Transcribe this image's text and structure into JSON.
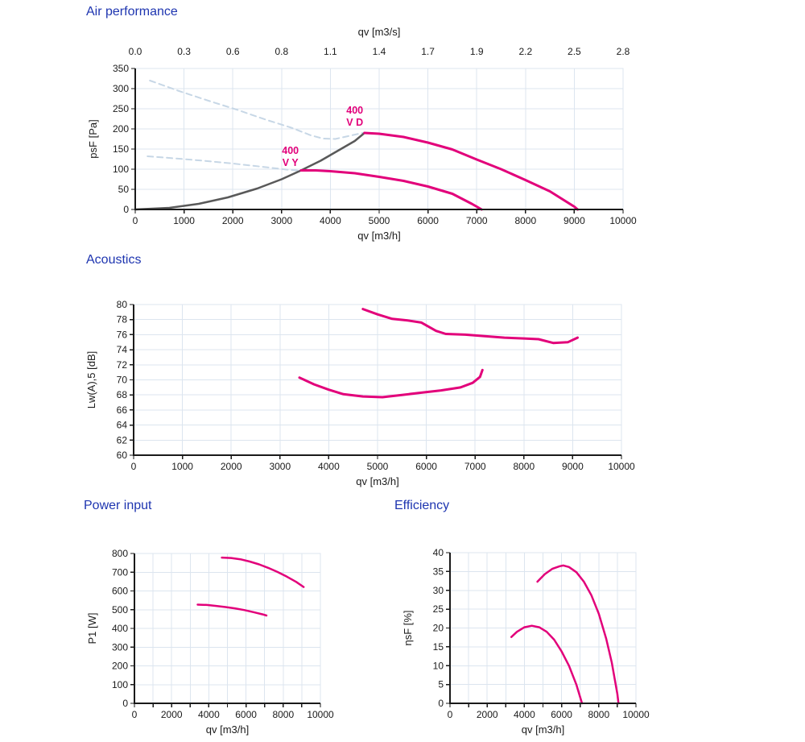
{
  "colors": {
    "title": "#1e35b0",
    "pink": "#e2007a",
    "gray": "#595959",
    "dash_blue": "#c7d7e6",
    "grid": "#dce5ef",
    "axis": "#1a1a1a",
    "text": "#1a1a1a"
  },
  "chart_data": [
    {
      "id": "air-performance",
      "type": "line",
      "title": "Air performance",
      "x_axis": {
        "label": "qv [m3/h]",
        "min": 0,
        "max": 10000,
        "ticks": [
          0,
          1000,
          2000,
          3000,
          4000,
          5000,
          6000,
          7000,
          8000,
          9000,
          10000
        ],
        "tick_labels": [
          "0",
          "1000",
          "2000",
          "3000",
          "4000",
          "5000",
          "6000",
          "7000",
          "8000",
          "9000",
          "10000"
        ]
      },
      "x_axis_top": {
        "label": "qv [m3/s]",
        "tick_labels": [
          "0.0",
          "0.3",
          "0.6",
          "0.8",
          "1.1",
          "1.4",
          "1.7",
          "1.9",
          "2.2",
          "2.5",
          "2.8"
        ]
      },
      "y_axis": {
        "label": "psF [Pa]",
        "min": 0,
        "max": 350,
        "ticks": [
          0,
          50,
          100,
          150,
          200,
          250,
          300,
          350
        ],
        "tick_labels": [
          "0",
          "50",
          "100",
          "150",
          "200",
          "250",
          "300",
          "350"
        ]
      },
      "series": [
        {
          "name": "vd-max-limit",
          "color_key": "dash_blue",
          "style": "dashed",
          "width": 2,
          "points": [
            [
              300,
              320
            ],
            [
              900,
              294
            ],
            [
              1500,
              270
            ],
            [
              2100,
              247
            ],
            [
              2700,
              222
            ],
            [
              3200,
              203
            ],
            [
              3600,
              184
            ],
            [
              3850,
              176
            ],
            [
              4100,
              175
            ],
            [
              4400,
              183
            ],
            [
              4700,
              191
            ]
          ]
        },
        {
          "name": "vy-max-limit",
          "color_key": "dash_blue",
          "style": "dashed",
          "width": 2,
          "points": [
            [
              250,
              132
            ],
            [
              800,
              127
            ],
            [
              1400,
              121
            ],
            [
              2000,
              114
            ],
            [
              2600,
              106
            ],
            [
              3100,
              99
            ],
            [
              3400,
              96
            ]
          ]
        },
        {
          "name": "system-curve",
          "color_key": "gray",
          "style": "solid",
          "width": 2.5,
          "points": [
            [
              0,
              0
            ],
            [
              700,
              4
            ],
            [
              1300,
              14
            ],
            [
              1900,
              30
            ],
            [
              2500,
              52
            ],
            [
              3000,
              75
            ],
            [
              3400,
              97
            ],
            [
              3800,
              121
            ],
            [
              4200,
              149
            ],
            [
              4500,
              170
            ],
            [
              4700,
              190
            ]
          ]
        },
        {
          "name": "400-vd-curve",
          "color_key": "pink",
          "style": "solid",
          "width": 3,
          "points": [
            [
              4700,
              190
            ],
            [
              5000,
              188
            ],
            [
              5500,
              180
            ],
            [
              6000,
              166
            ],
            [
              6500,
              149
            ],
            [
              7000,
              124
            ],
            [
              7500,
              100
            ],
            [
              8000,
              73
            ],
            [
              8500,
              45
            ],
            [
              9000,
              7
            ],
            [
              9070,
              0
            ]
          ]
        },
        {
          "name": "400-vy-curve",
          "color_key": "pink",
          "style": "solid",
          "width": 3,
          "points": [
            [
              3400,
              97
            ],
            [
              3700,
              97
            ],
            [
              4000,
              95
            ],
            [
              4500,
              90
            ],
            [
              5000,
              81
            ],
            [
              5500,
              71
            ],
            [
              6000,
              57
            ],
            [
              6500,
              39
            ],
            [
              6900,
              14
            ],
            [
              7100,
              0
            ]
          ]
        }
      ],
      "annotations": [
        {
          "x": 4500,
          "y": 238,
          "lines": [
            "400",
            "V D"
          ]
        },
        {
          "x": 3180,
          "y": 138,
          "lines": [
            "400",
            "V Y"
          ]
        }
      ]
    },
    {
      "id": "acoustics",
      "type": "line",
      "title": "Acoustics",
      "x_axis": {
        "label": "qv [m3/h]",
        "min": 0,
        "max": 10000,
        "ticks": [
          0,
          1000,
          2000,
          3000,
          4000,
          5000,
          6000,
          7000,
          8000,
          9000,
          10000
        ],
        "tick_labels": [
          "0",
          "1000",
          "2000",
          "3000",
          "4000",
          "5000",
          "6000",
          "7000",
          "8000",
          "9000",
          "10000"
        ]
      },
      "y_axis": {
        "label": "Lw(A),5 [dB]",
        "min": 60,
        "max": 80,
        "ticks": [
          60,
          62,
          64,
          66,
          68,
          70,
          72,
          74,
          76,
          78,
          80
        ],
        "tick_labels": [
          "60",
          "62",
          "64",
          "66",
          "68",
          "70",
          "72",
          "74",
          "76",
          "78",
          "80"
        ]
      },
      "series": [
        {
          "name": "400-vd-noise",
          "color_key": "pink",
          "style": "solid",
          "width": 3,
          "points": [
            [
              4700,
              79.4
            ],
            [
              5000,
              78.7
            ],
            [
              5300,
              78.1
            ],
            [
              5600,
              77.9
            ],
            [
              5900,
              77.6
            ],
            [
              6200,
              76.5
            ],
            [
              6400,
              76.1
            ],
            [
              6800,
              76.0
            ],
            [
              7200,
              75.8
            ],
            [
              7600,
              75.6
            ],
            [
              8000,
              75.5
            ],
            [
              8300,
              75.4
            ],
            [
              8600,
              74.9
            ],
            [
              8900,
              75.0
            ],
            [
              9100,
              75.6
            ]
          ]
        },
        {
          "name": "400-vy-noise",
          "color_key": "pink",
          "style": "solid",
          "width": 3,
          "points": [
            [
              3400,
              70.3
            ],
            [
              3700,
              69.4
            ],
            [
              4000,
              68.7
            ],
            [
              4300,
              68.1
            ],
            [
              4700,
              67.8
            ],
            [
              5100,
              67.7
            ],
            [
              5500,
              68.0
            ],
            [
              5900,
              68.3
            ],
            [
              6300,
              68.6
            ],
            [
              6700,
              69.0
            ],
            [
              6950,
              69.6
            ],
            [
              7100,
              70.4
            ],
            [
              7150,
              71.3
            ]
          ]
        }
      ],
      "annotations": []
    },
    {
      "id": "power-input",
      "type": "line",
      "title": "Power input",
      "x_axis": {
        "label": "qv [m3/h]",
        "min": 0,
        "max": 10000,
        "ticks": [
          0,
          1000,
          2000,
          3000,
          4000,
          5000,
          6000,
          7000,
          8000,
          9000,
          10000
        ],
        "tick_labels": [
          "0",
          "",
          "2000",
          "",
          "4000",
          "",
          "6000",
          "",
          "8000",
          "",
          "10000"
        ]
      },
      "y_axis": {
        "label": "P1 [W]",
        "min": 0,
        "max": 800,
        "ticks": [
          0,
          100,
          200,
          300,
          400,
          500,
          600,
          700,
          800
        ],
        "tick_labels": [
          "0",
          "100",
          "200",
          "300",
          "400",
          "500",
          "600",
          "700",
          "800"
        ]
      },
      "series": [
        {
          "name": "400-vd-power",
          "color_key": "pink",
          "style": "solid",
          "width": 2.5,
          "points": [
            [
              4700,
              778
            ],
            [
              5200,
              776
            ],
            [
              5700,
              769
            ],
            [
              6200,
              757
            ],
            [
              6700,
              742
            ],
            [
              7200,
              723
            ],
            [
              7700,
              701
            ],
            [
              8200,
              676
            ],
            [
              8700,
              648
            ],
            [
              9100,
              621
            ]
          ]
        },
        {
          "name": "400-vy-power",
          "color_key": "pink",
          "style": "solid",
          "width": 2.5,
          "points": [
            [
              3400,
              527
            ],
            [
              3900,
              525
            ],
            [
              4400,
              520
            ],
            [
              4900,
              514
            ],
            [
              5400,
              507
            ],
            [
              5900,
              498
            ],
            [
              6400,
              487
            ],
            [
              6900,
              475
            ],
            [
              7100,
              469
            ]
          ]
        }
      ],
      "annotations": []
    },
    {
      "id": "efficiency",
      "type": "line",
      "title": "Efficiency",
      "x_axis": {
        "label": "qv [m3/h]",
        "min": 0,
        "max": 10000,
        "ticks": [
          0,
          1000,
          2000,
          3000,
          4000,
          5000,
          6000,
          7000,
          8000,
          9000,
          10000
        ],
        "tick_labels": [
          "0",
          "",
          "2000",
          "",
          "4000",
          "",
          "6000",
          "",
          "8000",
          "",
          "10000"
        ]
      },
      "y_axis": {
        "label": "ηsF [%]",
        "min": 0,
        "max": 40,
        "ticks": [
          0,
          5,
          10,
          15,
          20,
          25,
          30,
          35,
          40
        ],
        "tick_labels": [
          "0",
          "5",
          "10",
          "15",
          "20",
          "25",
          "30",
          "35",
          "40"
        ]
      },
      "series": [
        {
          "name": "400-vd-efficiency",
          "color_key": "pink",
          "style": "solid",
          "width": 2.5,
          "points": [
            [
              4700,
              32.3
            ],
            [
              5100,
              34.3
            ],
            [
              5500,
              35.7
            ],
            [
              5900,
              36.4
            ],
            [
              6100,
              36.6
            ],
            [
              6400,
              36.2
            ],
            [
              6800,
              34.8
            ],
            [
              7200,
              32.3
            ],
            [
              7600,
              28.7
            ],
            [
              8000,
              23.8
            ],
            [
              8400,
              17.2
            ],
            [
              8700,
              10.8
            ],
            [
              9000,
              2.5
            ],
            [
              9060,
              0
            ]
          ]
        },
        {
          "name": "400-vy-efficiency",
          "color_key": "pink",
          "style": "solid",
          "width": 2.5,
          "points": [
            [
              3300,
              17.6
            ],
            [
              3600,
              19.0
            ],
            [
              4000,
              20.2
            ],
            [
              4400,
              20.6
            ],
            [
              4800,
              20.2
            ],
            [
              5200,
              19.0
            ],
            [
              5600,
              16.9
            ],
            [
              6000,
              13.8
            ],
            [
              6400,
              10.0
            ],
            [
              6800,
              4.9
            ],
            [
              7100,
              0
            ]
          ]
        }
      ],
      "annotations": []
    }
  ]
}
